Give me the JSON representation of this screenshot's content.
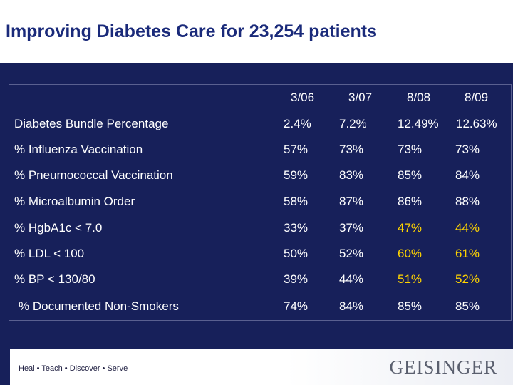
{
  "title": "Improving Diabetes Care for 23,254 patients",
  "table": {
    "columns": [
      "3/06",
      "3/07",
      "8/08",
      "8/09"
    ],
    "rows": [
      {
        "label": "Diabetes Bundle Percentage",
        "values": [
          "2.4%",
          "7.2%",
          "12.49%",
          "12.63%"
        ]
      },
      {
        "label": "% Influenza Vaccination",
        "values": [
          "57%",
          "73%",
          "73%",
          "73%"
        ]
      },
      {
        "label": "% Pneumococcal Vaccination",
        "values": [
          "59%",
          "83%",
          "85%",
          "84%"
        ]
      },
      {
        "label": "% Microalbumin Order",
        "values": [
          "58%",
          "87%",
          "86%",
          "88%"
        ]
      },
      {
        "label": "% HgbA1c < 7.0",
        "values": [
          "33%",
          "37%",
          "47%",
          "44%"
        ]
      },
      {
        "label": "% LDL < 100",
        "values": [
          "50%",
          "52%",
          "60%",
          "61%"
        ]
      },
      {
        "label": "% BP < 130/80",
        "values": [
          "39%",
          "44%",
          "51%",
          "52%"
        ]
      },
      {
        "label": "% Documented Non-Smokers",
        "values": [
          "74%",
          "84%",
          "85%",
          "85%"
        ]
      }
    ],
    "highlighted_cells": [
      [
        4,
        2
      ],
      [
        4,
        3
      ],
      [
        5,
        2
      ],
      [
        5,
        3
      ],
      [
        6,
        2
      ],
      [
        6,
        3
      ]
    ],
    "highlight_color": "#ffd400"
  },
  "footer": {
    "tagline": "Heal • Teach • Discover • Serve",
    "logo": "GEISINGER"
  },
  "colors": {
    "background": "#17205a",
    "title": "#1a2a7a",
    "text": "#ffffff"
  }
}
